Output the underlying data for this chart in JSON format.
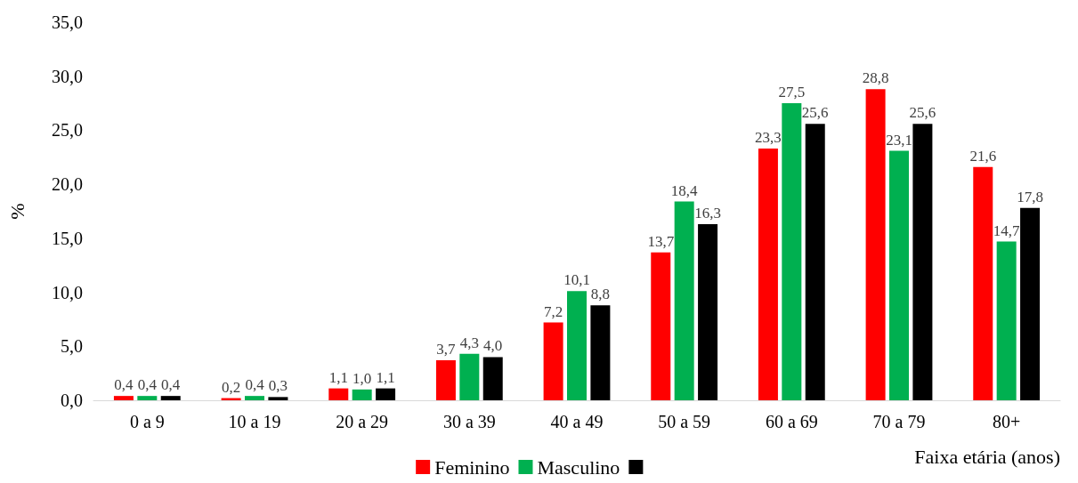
{
  "chart_data": {
    "type": "bar",
    "xlabel": "Faixa etária (anos)",
    "ylabel": "%",
    "categories": [
      "0 a 9",
      "10 a 19",
      "20 a 29",
      "30 a 39",
      "40 a 49",
      "50 a 59",
      "60 a 69",
      "70 a 79",
      "80+"
    ],
    "series": [
      {
        "name": "Feminino",
        "color": "#ff0000",
        "values": [
          0.4,
          0.2,
          1.1,
          3.7,
          7.2,
          13.7,
          23.3,
          28.8,
          21.6
        ],
        "value_labels": [
          "0,4",
          "0,2",
          "1,1",
          "3,7",
          "7,2",
          "13,7",
          "23,3",
          "28,8",
          "21,6"
        ]
      },
      {
        "name": "Masculino",
        "color": "#00b050",
        "values": [
          0.4,
          0.4,
          1.0,
          4.3,
          10.1,
          18.4,
          27.5,
          23.1,
          14.7
        ],
        "value_labels": [
          "0,4",
          "0,4",
          "1,0",
          "4,3",
          "10,1",
          "18,4",
          "27,5",
          "23,1",
          "14,7"
        ]
      },
      {
        "color": "#000000",
        "values": [
          0.4,
          0.3,
          1.1,
          4.0,
          8.8,
          16.3,
          25.6,
          25.6,
          17.8
        ],
        "value_labels": [
          "0,4",
          "0,3",
          "1,1",
          "4,0",
          "8,8",
          "16,3",
          "25,6",
          "25,6",
          "17,8"
        ]
      }
    ],
    "ylim": [
      0,
      35
    ],
    "yticks": [
      {
        "value": 0,
        "label": "0,0"
      },
      {
        "value": 5,
        "label": "5,0"
      },
      {
        "value": 10,
        "label": "10,0"
      },
      {
        "value": 15,
        "label": "15,0"
      },
      {
        "value": 20,
        "label": "20,0"
      },
      {
        "value": 25,
        "label": "25,0"
      },
      {
        "value": 30,
        "label": "30,0"
      },
      {
        "value": 35,
        "label": "35,0"
      }
    ],
    "grid": false,
    "legend": "bottom"
  }
}
